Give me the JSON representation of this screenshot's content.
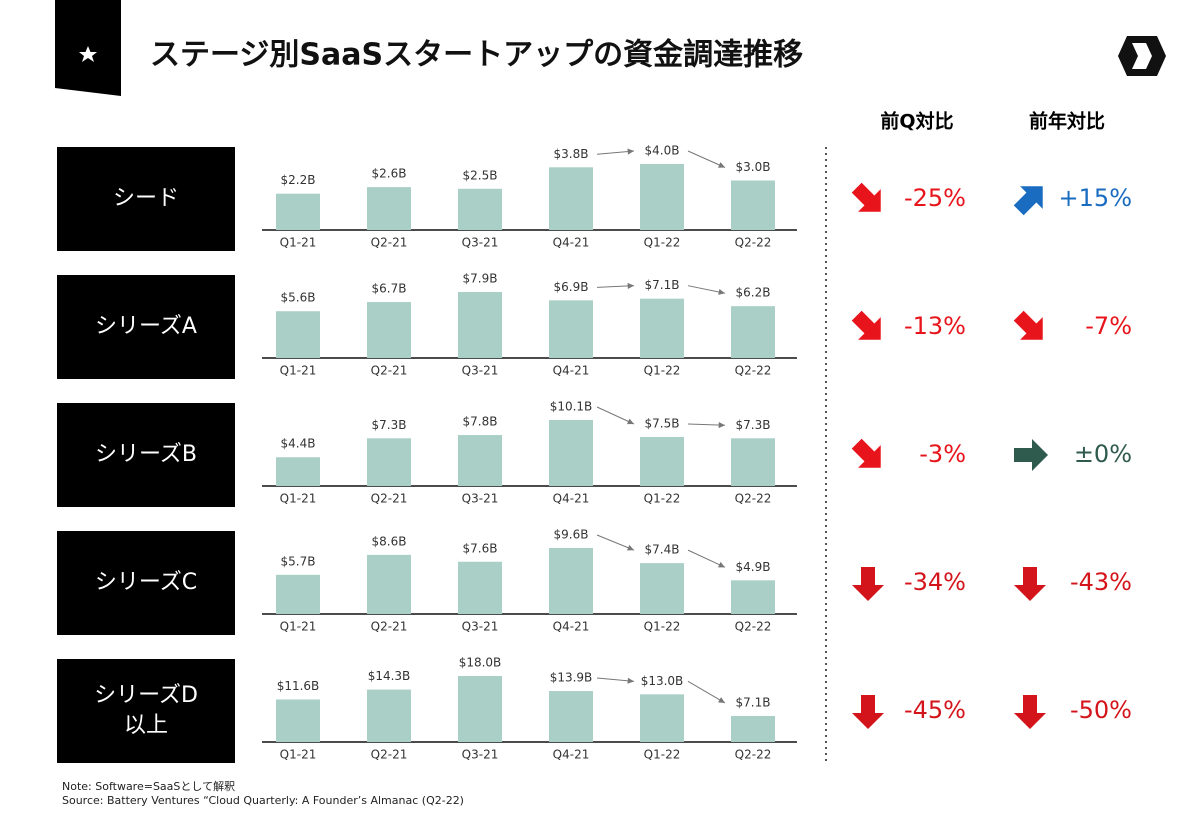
{
  "title": "ステージ別SaaSスタートアップの資金調達推移",
  "headers": {
    "qoq": "前Q対比",
    "yoy": "前年対比"
  },
  "note": "Note:  Software=SaaSとして解釈",
  "source": "Source: Battery Ventures “Cloud Quarterly: A Founder’s Almanac (Q2-22)",
  "chart_data": [
    {
      "type": "bar",
      "label": [
        "シード"
      ],
      "color": "#a9cfc6",
      "categories": [
        "Q1-21",
        "Q2-21",
        "Q3-21",
        "Q4-21",
        "Q1-22",
        "Q2-22"
      ],
      "values": [
        2.2,
        2.6,
        2.5,
        3.8,
        4.0,
        3.0
      ],
      "value_labels": [
        "$2.2B",
        "$2.6B",
        "$2.5B",
        "$3.8B",
        "$4.0B",
        "$3.0B"
      ],
      "qoq": {
        "value": -25,
        "label": "-25%"
      },
      "yoy": {
        "value": 15,
        "label": "+15%"
      }
    },
    {
      "type": "bar",
      "label": [
        "シリーズA"
      ],
      "color": "#a9cfc6",
      "categories": [
        "Q1-21",
        "Q2-21",
        "Q3-21",
        "Q4-21",
        "Q1-22",
        "Q2-22"
      ],
      "values": [
        5.6,
        6.7,
        7.9,
        6.9,
        7.1,
        6.2
      ],
      "value_labels": [
        "$5.6B",
        "$6.7B",
        "$7.9B",
        "$6.9B",
        "$7.1B",
        "$6.2B"
      ],
      "qoq": {
        "value": -13,
        "label": "-13%"
      },
      "yoy": {
        "value": -7,
        "label": "-7%"
      }
    },
    {
      "type": "bar",
      "label": [
        "シリーズB"
      ],
      "color": "#a9cfc6",
      "categories": [
        "Q1-21",
        "Q2-21",
        "Q3-21",
        "Q4-21",
        "Q1-22",
        "Q2-22"
      ],
      "values": [
        4.4,
        7.3,
        7.8,
        10.1,
        7.5,
        7.3
      ],
      "value_labels": [
        "$4.4B",
        "$7.3B",
        "$7.8B",
        "$10.1B",
        "$7.5B",
        "$7.3B"
      ],
      "qoq": {
        "value": -3,
        "label": "-3%"
      },
      "yoy": {
        "value": 0,
        "label": "±0%"
      }
    },
    {
      "type": "bar",
      "label": [
        "シリーズC"
      ],
      "color": "#a9cfc6",
      "categories": [
        "Q1-21",
        "Q2-21",
        "Q3-21",
        "Q4-21",
        "Q1-22",
        "Q2-22"
      ],
      "values": [
        5.7,
        8.6,
        7.6,
        9.6,
        7.4,
        4.9
      ],
      "value_labels": [
        "$5.7B",
        "$8.6B",
        "$7.6B",
        "$9.6B",
        "$7.4B",
        "$4.9B"
      ],
      "qoq": {
        "value": -34,
        "label": "-34%"
      },
      "yoy": {
        "value": -43,
        "label": "-43%"
      }
    },
    {
      "type": "bar",
      "label": [
        "シリーズD",
        "以上"
      ],
      "color": "#a9cfc6",
      "categories": [
        "Q1-21",
        "Q2-21",
        "Q3-21",
        "Q4-21",
        "Q1-22",
        "Q2-22"
      ],
      "values": [
        11.6,
        14.3,
        18.0,
        13.9,
        13.0,
        7.1
      ],
      "value_labels": [
        "$11.6B",
        "$14.3B",
        "$18.0B",
        "$13.9B",
        "$13.0B",
        "$7.1B"
      ],
      "qoq": {
        "value": -45,
        "label": "-45%"
      },
      "yoy": {
        "value": -50,
        "label": "-50%"
      }
    }
  ]
}
